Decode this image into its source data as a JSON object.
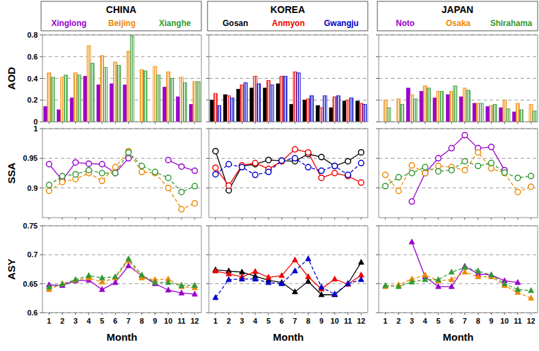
{
  "chart_data": [
    {
      "type": "bar",
      "title": "CHINA",
      "legend": "top",
      "ylabel": "AOD",
      "tick_labels": "y",
      "grid": true,
      "categories": [
        1,
        2,
        3,
        4,
        5,
        6,
        7,
        8,
        9,
        10,
        11,
        12
      ],
      "ylim": [
        0,
        0.8
      ],
      "yticks": [
        0,
        0.2,
        0.4,
        0.6,
        0.8
      ],
      "series": [
        {
          "name": "Xinglong",
          "color": "#9900cc",
          "values": [
            0.14,
            0.11,
            0.22,
            0.42,
            0.34,
            0.35,
            0.34,
            null,
            null,
            0.32,
            0.23,
            0.16
          ]
        },
        {
          "name": "Beijing",
          "color": "#ee8800",
          "values": [
            0.45,
            0.41,
            0.45,
            0.7,
            0.61,
            0.55,
            0.65,
            0.48,
            0.51,
            0.46,
            0.41,
            0.37
          ]
        },
        {
          "name": "Xianghe",
          "color": "#339933",
          "values": [
            0.41,
            0.43,
            0.43,
            0.54,
            0.5,
            0.52,
            0.79,
            0.47,
            0.43,
            0.4,
            0.36,
            0.37
          ]
        }
      ]
    },
    {
      "type": "bar",
      "title": "KOREA",
      "legend": "top",
      "tick_labels": false,
      "grid": true,
      "categories": [
        1,
        2,
        3,
        4,
        5,
        6,
        7,
        8,
        9,
        10,
        11,
        12
      ],
      "ylim": [
        0,
        0.8
      ],
      "yticks": [
        0,
        0.2,
        0.4,
        0.6,
        0.8
      ],
      "series": [
        {
          "name": "Gosan",
          "color": "#000000",
          "values": [
            0.2,
            0.25,
            0.3,
            0.31,
            0.31,
            0.35,
            0.16,
            0.2,
            0.15,
            0.13,
            0.19,
            0.19
          ]
        },
        {
          "name": "Anmyon",
          "color": "#ee0000",
          "values": [
            0.26,
            0.24,
            0.34,
            0.42,
            0.38,
            0.42,
            0.46,
            0.21,
            0.13,
            0.23,
            0.2,
            0.17
          ]
        },
        {
          "name": "Gwangju",
          "color": "#0000cc",
          "values": [
            0.15,
            0.22,
            0.36,
            0.35,
            0.34,
            0.42,
            0.45,
            0.24,
            0.24,
            0.24,
            0.22,
            0.16
          ]
        }
      ]
    },
    {
      "type": "bar",
      "title": "JAPAN",
      "legend": "top",
      "tick_labels": false,
      "grid": true,
      "categories": [
        1,
        2,
        3,
        4,
        5,
        6,
        7,
        8,
        9,
        10,
        11,
        12
      ],
      "ylim": [
        0,
        0.8
      ],
      "yticks": [
        0,
        0.2,
        0.4,
        0.6,
        0.8
      ],
      "series": [
        {
          "name": "Noto",
          "color": "#9900cc",
          "values": [
            null,
            null,
            0.31,
            0.28,
            0.22,
            0.25,
            0.23,
            0.17,
            0.14,
            0.13,
            0.09,
            null
          ]
        },
        {
          "name": "Osaka",
          "color": "#ee8800",
          "values": [
            0.2,
            0.21,
            0.25,
            0.33,
            0.28,
            0.28,
            0.31,
            0.17,
            0.15,
            0.2,
            0.17,
            0.16
          ]
        },
        {
          "name": "Shirahama",
          "color": "#339933",
          "values": [
            0.13,
            0.16,
            0.21,
            0.31,
            0.28,
            0.33,
            0.29,
            0.17,
            0.16,
            0.12,
            0.11,
            0.1
          ]
        }
      ]
    },
    {
      "type": "line",
      "ylabel": "SSA",
      "tick_labels": "y",
      "grid": true,
      "categories": [
        1,
        2,
        3,
        4,
        5,
        6,
        7,
        8,
        9,
        10,
        11,
        12
      ],
      "ylim": [
        0.85,
        1
      ],
      "yticks": [
        0.9,
        0.95,
        1
      ],
      "series": [
        {
          "color": "#9900cc",
          "marker": "circle",
          "line_style": "solid",
          "values": [
            0.94,
            0.913,
            0.943,
            0.941,
            0.94,
            0.925,
            0.95,
            null,
            null,
            0.947,
            0.936,
            0.929
          ]
        },
        {
          "color": "#ee8800",
          "marker": "circle",
          "line_style": "dashed",
          "values": [
            0.895,
            0.91,
            0.915,
            0.925,
            0.912,
            0.935,
            0.962,
            0.927,
            0.925,
            0.9,
            0.864,
            0.874
          ]
        },
        {
          "color": "#339933",
          "marker": "circle",
          "line_style": "dashed",
          "values": [
            0.905,
            0.92,
            0.923,
            0.93,
            0.925,
            0.925,
            0.96,
            0.937,
            0.927,
            0.917,
            0.893,
            0.903
          ]
        }
      ]
    },
    {
      "type": "line",
      "tick_labels": false,
      "grid": true,
      "categories": [
        1,
        2,
        3,
        4,
        5,
        6,
        7,
        8,
        9,
        10,
        11,
        12
      ],
      "ylim": [
        0.85,
        1
      ],
      "yticks": [
        0.9,
        0.95,
        1
      ],
      "series": [
        {
          "color": "#000000",
          "marker": "circle",
          "line_style": "solid",
          "values": [
            0.962,
            0.896,
            0.937,
            0.94,
            0.947,
            0.946,
            0.945,
            0.957,
            0.952,
            0.937,
            0.945,
            0.96
          ]
        },
        {
          "color": "#ee0000",
          "marker": "circle",
          "line_style": "solid",
          "values": [
            0.934,
            0.904,
            0.938,
            0.942,
            0.932,
            0.945,
            0.965,
            0.96,
            0.917,
            0.925,
            0.92,
            0.909
          ]
        },
        {
          "color": "#0000cc",
          "marker": "circle",
          "line_style": "dashed",
          "values": [
            0.923,
            0.94,
            0.935,
            0.922,
            0.927,
            0.946,
            0.95,
            0.935,
            0.929,
            0.937,
            0.922,
            0.942
          ]
        }
      ]
    },
    {
      "type": "line",
      "tick_labels": false,
      "grid": true,
      "categories": [
        1,
        2,
        3,
        4,
        5,
        6,
        7,
        8,
        9,
        10,
        11,
        12
      ],
      "ylim": [
        0.85,
        1
      ],
      "yticks": [
        0.9,
        0.95,
        1
      ],
      "series": [
        {
          "color": "#9900cc",
          "marker": "circle",
          "line_style": "solid",
          "values": [
            null,
            null,
            0.877,
            0.925,
            0.95,
            0.967,
            0.989,
            0.967,
            0.969,
            0.93,
            null,
            null
          ]
        },
        {
          "color": "#ee8800",
          "marker": "circle",
          "line_style": "dashed",
          "values": [
            0.922,
            0.895,
            0.938,
            0.925,
            0.937,
            0.935,
            0.93,
            0.96,
            0.933,
            0.925,
            0.893,
            0.902
          ]
        },
        {
          "color": "#339933",
          "marker": "circle",
          "line_style": "dashed",
          "values": [
            0.903,
            0.918,
            0.925,
            0.935,
            0.928,
            0.93,
            0.945,
            0.937,
            0.942,
            0.926,
            0.917,
            0.92
          ]
        }
      ]
    },
    {
      "type": "line",
      "ylabel": "ASY",
      "xlabel": "Month",
      "tick_labels": true,
      "grid": true,
      "categories": [
        1,
        2,
        3,
        4,
        5,
        6,
        7,
        8,
        9,
        10,
        11,
        12
      ],
      "ylim": [
        0.6,
        0.75
      ],
      "yticks": [
        0.6,
        0.65,
        0.7,
        0.75
      ],
      "series": [
        {
          "color": "#9900cc",
          "marker": "triangle",
          "line_style": "solid",
          "values": [
            0.648,
            0.647,
            0.655,
            0.656,
            0.64,
            0.652,
            0.681,
            0.664,
            0.65,
            0.639,
            0.634,
            0.632
          ]
        },
        {
          "color": "#ee8800",
          "marker": "triangle",
          "line_style": "dashed",
          "values": [
            0.64,
            0.65,
            0.656,
            0.66,
            0.653,
            0.66,
            0.69,
            0.66,
            0.657,
            0.658,
            0.645,
            0.643
          ]
        },
        {
          "color": "#339933",
          "marker": "triangle",
          "line_style": "dashed",
          "values": [
            0.644,
            0.649,
            0.657,
            0.664,
            0.66,
            0.662,
            0.693,
            0.665,
            0.652,
            0.652,
            0.647,
            0.647
          ]
        }
      ]
    },
    {
      "type": "line",
      "xlabel": "Month",
      "tick_labels": "x",
      "grid": true,
      "categories": [
        1,
        2,
        3,
        4,
        5,
        6,
        7,
        8,
        9,
        10,
        11,
        12
      ],
      "ylim": [
        0.6,
        0.75
      ],
      "yticks": [
        0.6,
        0.65,
        0.7,
        0.75
      ],
      "series": [
        {
          "color": "#000000",
          "marker": "triangle",
          "line_style": "solid",
          "values": [
            0.674,
            0.672,
            0.67,
            0.663,
            0.656,
            0.652,
            0.636,
            0.654,
            0.631,
            0.631,
            0.65,
            0.687
          ]
        },
        {
          "color": "#ee0000",
          "marker": "triangle",
          "line_style": "solid",
          "values": [
            0.672,
            0.667,
            0.662,
            0.671,
            0.661,
            0.664,
            0.691,
            0.662,
            0.641,
            0.658,
            0.649,
            0.665
          ]
        },
        {
          "color": "#0000cc",
          "marker": "triangle",
          "line_style": "dashed",
          "values": [
            0.626,
            0.657,
            0.658,
            0.658,
            0.652,
            0.65,
            0.672,
            0.693,
            0.644,
            0.632,
            0.65,
            0.657
          ]
        }
      ]
    },
    {
      "type": "line",
      "xlabel": "Month",
      "tick_labels": "x",
      "grid": true,
      "categories": [
        1,
        2,
        3,
        4,
        5,
        6,
        7,
        8,
        9,
        10,
        11,
        12
      ],
      "ylim": [
        0.6,
        0.75
      ],
      "yticks": [
        0.6,
        0.65,
        0.7,
        0.75
      ],
      "series": [
        {
          "color": "#9900cc",
          "marker": "triangle",
          "line_style": "solid",
          "values": [
            null,
            null,
            0.722,
            0.662,
            0.645,
            0.645,
            0.68,
            0.667,
            0.665,
            0.655,
            0.652,
            null
          ]
        },
        {
          "color": "#ee8800",
          "marker": "triangle",
          "line_style": "dashed",
          "values": [
            0.645,
            0.648,
            0.658,
            0.665,
            0.655,
            0.657,
            0.67,
            0.662,
            0.662,
            0.647,
            0.635,
            0.625
          ]
        },
        {
          "color": "#339933",
          "marker": "triangle",
          "line_style": "dashed",
          "values": [
            0.647,
            0.645,
            0.653,
            0.657,
            0.657,
            0.67,
            0.678,
            0.672,
            0.665,
            0.65,
            0.64,
            0.638
          ]
        }
      ]
    }
  ]
}
